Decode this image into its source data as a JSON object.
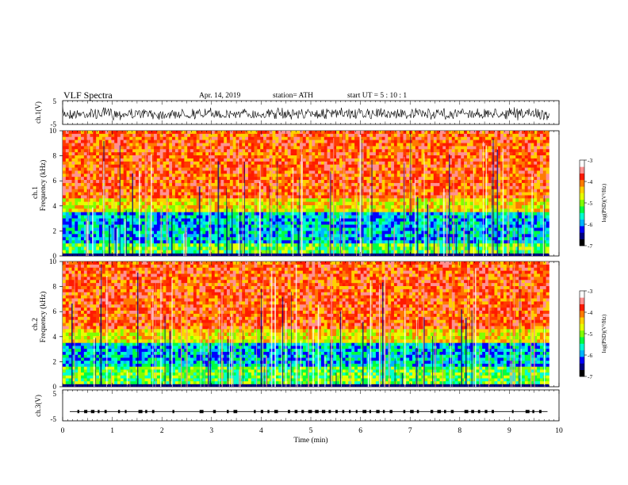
{
  "header": {
    "title": "VLF  Spectra",
    "date": "Apr. 14, 2019",
    "station": "station= ATH",
    "start_ut": "start  UT  =    5  : 10 : 1"
  },
  "chart_data": [
    {
      "type": "line",
      "panel": "ch1-waveform",
      "ylabel": "ch.1(V)",
      "yticks": [
        "5",
        "-5"
      ],
      "ylim": [
        -5,
        5
      ],
      "x_unit": "min",
      "xlim": [
        0,
        9.8
      ],
      "signal": {
        "center": -0.5,
        "amplitude": 2.0,
        "color": "#000000"
      }
    },
    {
      "type": "heatmap",
      "panel": "ch1-spectrogram",
      "ylabel_line1": "ch.1",
      "ylabel_line2": "Frequency (kHz)",
      "yticks": [
        "0",
        "2",
        "4",
        "6",
        "8",
        "10"
      ],
      "ylim": [
        0,
        10
      ],
      "xlim": [
        0,
        9.8
      ],
      "colorbar": {
        "label": "log(PSD)(V²/Hz)",
        "ticks": [
          "-3",
          "-4",
          "-5",
          "-6",
          "-7"
        ],
        "range": [
          -7,
          -3
        ]
      },
      "bands": [
        {
          "freq": [
            4.6,
            10
          ],
          "level": "high"
        },
        {
          "freq": [
            3.5,
            4.6
          ],
          "level": "mid-high"
        },
        {
          "freq": [
            1.0,
            3.5
          ],
          "level": "low"
        },
        {
          "freq": [
            0.2,
            1.0
          ],
          "level": "mid"
        }
      ]
    },
    {
      "type": "heatmap",
      "panel": "ch2-spectrogram",
      "ylabel_line1": "ch.2",
      "ylabel_line2": "Frequency (kHz)",
      "yticks": [
        "0",
        "2",
        "4",
        "6",
        "8",
        "10"
      ],
      "ylim": [
        0,
        10
      ],
      "xlim": [
        0,
        9.8
      ],
      "colorbar": {
        "label": "log(PSD)(V²/Hz)",
        "ticks": [
          "-3",
          "-4",
          "-5",
          "-6",
          "-7"
        ],
        "range": [
          -7,
          -3
        ]
      },
      "bands": [
        {
          "freq": [
            4.6,
            10
          ],
          "level": "high"
        },
        {
          "freq": [
            3.5,
            4.6
          ],
          "level": "mid-high"
        },
        {
          "freq": [
            1.6,
            3.5
          ],
          "level": "low"
        },
        {
          "freq": [
            0.2,
            1.6
          ],
          "level": "mid"
        }
      ]
    },
    {
      "type": "line",
      "panel": "ch3-waveform",
      "ylabel": "ch.3(V)",
      "yticks": [
        "5",
        "-5"
      ],
      "ylim": [
        -5,
        5
      ],
      "xlabel": "Time  (min)",
      "xticks": [
        "0",
        "1",
        "2",
        "3",
        "4",
        "5",
        "6",
        "7",
        "8",
        "9",
        "10"
      ],
      "xlim": [
        0,
        10
      ],
      "signal": {
        "level": -2.0,
        "color": "#000000"
      }
    }
  ],
  "colormap": [
    "#000000",
    "#00007f",
    "#0000ff",
    "#00b4ff",
    "#00ffd0",
    "#00ff40",
    "#80ff00",
    "#e6ff00",
    "#ffd000",
    "#ff7a00",
    "#ff1a00",
    "#ff9090",
    "#ffffff"
  ]
}
